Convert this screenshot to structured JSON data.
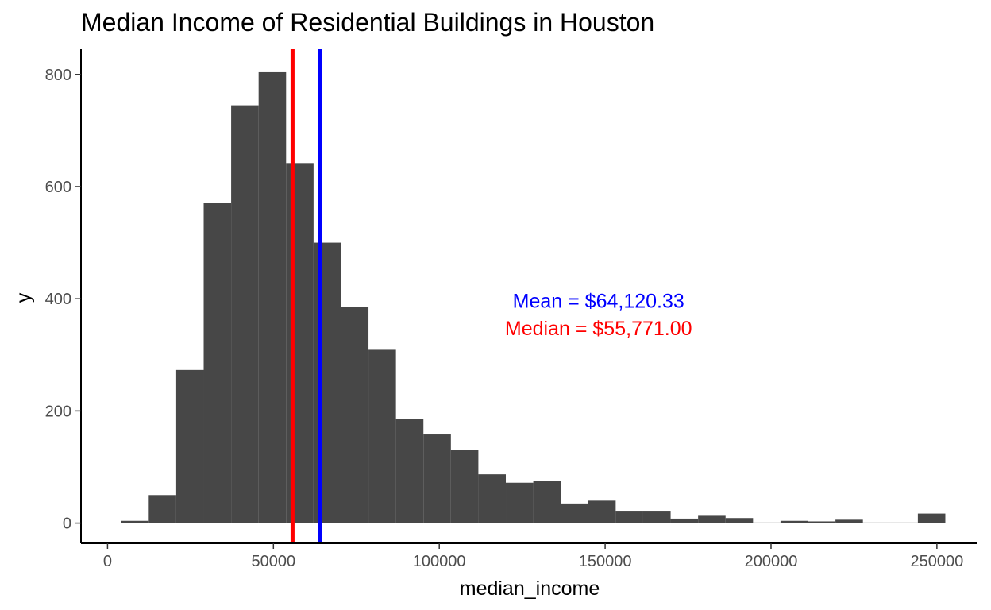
{
  "chart_data": {
    "type": "bar",
    "subtype": "histogram",
    "title": "Median Income of Residential Buildings in Houston",
    "xlabel": "median_income",
    "ylabel": "y",
    "xlim": [
      -8000,
      262000
    ],
    "ylim": [
      -36,
      845
    ],
    "xticks": [
      0,
      50000,
      100000,
      150000,
      200000,
      250000
    ],
    "xtick_labels": [
      "0",
      "50000",
      "100000",
      "150000",
      "200000",
      "250000"
    ],
    "yticks": [
      0,
      200,
      400,
      600,
      800
    ],
    "ytick_labels": [
      "0",
      "200",
      "400",
      "600",
      "800"
    ],
    "bin_width": 8280,
    "bins": [
      {
        "x0": 4140,
        "x1": 12420,
        "count": 4
      },
      {
        "x0": 12420,
        "x1": 20700,
        "count": 50
      },
      {
        "x0": 20700,
        "x1": 28980,
        "count": 273
      },
      {
        "x0": 28980,
        "x1": 37260,
        "count": 571
      },
      {
        "x0": 37260,
        "x1": 45540,
        "count": 745
      },
      {
        "x0": 45540,
        "x1": 53820,
        "count": 804
      },
      {
        "x0": 53820,
        "x1": 62100,
        "count": 642
      },
      {
        "x0": 62100,
        "x1": 70380,
        "count": 500
      },
      {
        "x0": 70380,
        "x1": 78660,
        "count": 385
      },
      {
        "x0": 78660,
        "x1": 86940,
        "count": 309
      },
      {
        "x0": 86940,
        "x1": 95220,
        "count": 185
      },
      {
        "x0": 95220,
        "x1": 103500,
        "count": 158
      },
      {
        "x0": 103500,
        "x1": 111780,
        "count": 130
      },
      {
        "x0": 111780,
        "x1": 120060,
        "count": 87
      },
      {
        "x0": 120060,
        "x1": 128340,
        "count": 72
      },
      {
        "x0": 128340,
        "x1": 136620,
        "count": 75
      },
      {
        "x0": 136620,
        "x1": 144900,
        "count": 35
      },
      {
        "x0": 144900,
        "x1": 153180,
        "count": 40
      },
      {
        "x0": 153180,
        "x1": 161460,
        "count": 22
      },
      {
        "x0": 161460,
        "x1": 169740,
        "count": 22
      },
      {
        "x0": 169740,
        "x1": 178020,
        "count": 8
      },
      {
        "x0": 178020,
        "x1": 186300,
        "count": 13
      },
      {
        "x0": 186300,
        "x1": 194580,
        "count": 9
      },
      {
        "x0": 194580,
        "x1": 202860,
        "count": 1
      },
      {
        "x0": 202860,
        "x1": 211140,
        "count": 4
      },
      {
        "x0": 211140,
        "x1": 219420,
        "count": 3
      },
      {
        "x0": 219420,
        "x1": 227700,
        "count": 6
      },
      {
        "x0": 227700,
        "x1": 235980,
        "count": 1
      },
      {
        "x0": 235980,
        "x1": 244260,
        "count": 1
      },
      {
        "x0": 244260,
        "x1": 252540,
        "count": 17
      }
    ],
    "vlines": [
      {
        "name": "median",
        "x": 55771.0,
        "color": "#ff0000"
      },
      {
        "name": "mean",
        "x": 64120.33,
        "color": "#0000ff"
      }
    ],
    "annotations": [
      {
        "text": "Mean = $64,120.33",
        "x": 148000,
        "y": 397,
        "color": "#0000ff"
      },
      {
        "text": "Median = $55,771.00",
        "x": 148000,
        "y": 348,
        "color": "#ff0000"
      }
    ],
    "bar_color": "#474747",
    "grid": false,
    "legend": "none"
  }
}
